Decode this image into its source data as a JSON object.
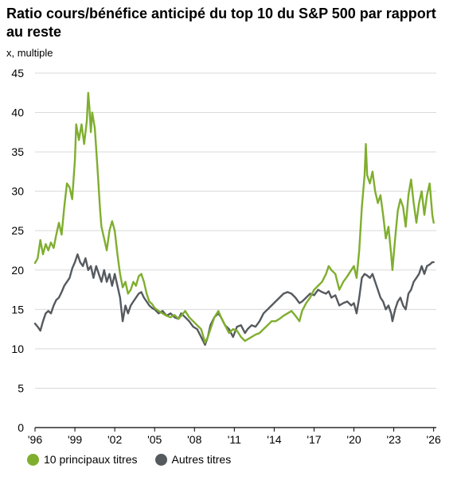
{
  "header": {
    "title": "Ratio cours/bénéfice anticipé du top 10 du S&P 500 par rapport au reste",
    "subtitle": "x, multiple"
  },
  "colors": {
    "top10": "#7fae2f",
    "others": "#555a5f",
    "grid": "#d9d9d9",
    "axis": "#000000"
  },
  "chart_data": {
    "type": "line",
    "title": "Ratio cours/bénéfice anticipé du top 10 du S&P 500 par rapport au reste",
    "ylabel": "x, multiple",
    "xlabel": "",
    "ylim": [
      0,
      45
    ],
    "xlim": [
      1996,
      2026.2
    ],
    "grid": true,
    "legend_position": "bottom-left",
    "y_ticks": [
      0,
      5,
      10,
      15,
      20,
      25,
      30,
      35,
      40,
      45
    ],
    "x_ticks": [
      {
        "value": 1996,
        "label": "'96"
      },
      {
        "value": 1999,
        "label": "'99"
      },
      {
        "value": 2002,
        "label": "'02"
      },
      {
        "value": 2005,
        "label": "'05"
      },
      {
        "value": 2008,
        "label": "'08"
      },
      {
        "value": 2011,
        "label": "'11"
      },
      {
        "value": 2014,
        "label": "'14"
      },
      {
        "value": 2017,
        "label": "'17"
      },
      {
        "value": 2020,
        "label": "'20"
      },
      {
        "value": 2023,
        "label": "'23"
      },
      {
        "value": 2026,
        "label": "'26"
      }
    ],
    "series": [
      {
        "name": "10 principaux titres",
        "points": [
          [
            1996.0,
            20.9
          ],
          [
            1996.2,
            21.5
          ],
          [
            1996.4,
            23.8
          ],
          [
            1996.6,
            22.0
          ],
          [
            1996.8,
            23.3
          ],
          [
            1997.0,
            22.5
          ],
          [
            1997.2,
            23.5
          ],
          [
            1997.4,
            22.8
          ],
          [
            1997.6,
            24.5
          ],
          [
            1997.8,
            26.0
          ],
          [
            1998.0,
            24.5
          ],
          [
            1998.2,
            28.0
          ],
          [
            1998.4,
            31.0
          ],
          [
            1998.6,
            30.5
          ],
          [
            1998.8,
            29.0
          ],
          [
            1999.0,
            34.0
          ],
          [
            1999.1,
            38.5
          ],
          [
            1999.3,
            36.5
          ],
          [
            1999.5,
            38.5
          ],
          [
            1999.7,
            36.0
          ],
          [
            1999.9,
            39.0
          ],
          [
            2000.0,
            42.5
          ],
          [
            2000.1,
            40.5
          ],
          [
            2000.2,
            37.5
          ],
          [
            2000.3,
            40.0
          ],
          [
            2000.5,
            38.0
          ],
          [
            2000.7,
            33.0
          ],
          [
            2000.9,
            27.5
          ],
          [
            2001.0,
            25.5
          ],
          [
            2001.2,
            24.0
          ],
          [
            2001.4,
            22.5
          ],
          [
            2001.6,
            25.0
          ],
          [
            2001.8,
            26.2
          ],
          [
            2002.0,
            25.0
          ],
          [
            2002.2,
            22.0
          ],
          [
            2002.4,
            19.5
          ],
          [
            2002.6,
            17.8
          ],
          [
            2002.8,
            18.5
          ],
          [
            2003.0,
            17.0
          ],
          [
            2003.2,
            17.5
          ],
          [
            2003.4,
            18.5
          ],
          [
            2003.6,
            18.0
          ],
          [
            2003.8,
            19.2
          ],
          [
            2004.0,
            19.5
          ],
          [
            2004.2,
            18.5
          ],
          [
            2004.4,
            17.0
          ],
          [
            2004.6,
            16.0
          ],
          [
            2004.8,
            15.7
          ],
          [
            2005.0,
            15.2
          ],
          [
            2005.3,
            14.8
          ],
          [
            2005.6,
            14.5
          ],
          [
            2005.9,
            14.2
          ],
          [
            2006.2,
            14.0
          ],
          [
            2006.5,
            14.3
          ],
          [
            2006.8,
            13.8
          ],
          [
            2007.0,
            14.2
          ],
          [
            2007.3,
            14.8
          ],
          [
            2007.6,
            14.0
          ],
          [
            2007.9,
            13.5
          ],
          [
            2008.2,
            13.0
          ],
          [
            2008.5,
            12.5
          ],
          [
            2008.8,
            10.8
          ],
          [
            2009.0,
            11.5
          ],
          [
            2009.2,
            12.5
          ],
          [
            2009.5,
            14.0
          ],
          [
            2009.8,
            14.8
          ],
          [
            2010.0,
            14.0
          ],
          [
            2010.3,
            13.0
          ],
          [
            2010.6,
            12.0
          ],
          [
            2010.9,
            12.5
          ],
          [
            2011.2,
            12.3
          ],
          [
            2011.5,
            11.5
          ],
          [
            2011.8,
            11.0
          ],
          [
            2012.0,
            11.2
          ],
          [
            2012.3,
            11.5
          ],
          [
            2012.6,
            11.8
          ],
          [
            2012.9,
            12.0
          ],
          [
            2013.2,
            12.5
          ],
          [
            2013.5,
            13.0
          ],
          [
            2013.8,
            13.5
          ],
          [
            2014.1,
            13.5
          ],
          [
            2014.4,
            13.8
          ],
          [
            2014.7,
            14.2
          ],
          [
            2015.0,
            14.5
          ],
          [
            2015.3,
            14.8
          ],
          [
            2015.6,
            14.2
          ],
          [
            2015.9,
            13.5
          ],
          [
            2016.1,
            14.8
          ],
          [
            2016.4,
            15.8
          ],
          [
            2016.7,
            16.5
          ],
          [
            2017.0,
            17.5
          ],
          [
            2017.3,
            18.0
          ],
          [
            2017.6,
            18.5
          ],
          [
            2017.9,
            19.5
          ],
          [
            2018.1,
            20.5
          ],
          [
            2018.3,
            20.0
          ],
          [
            2018.6,
            19.5
          ],
          [
            2018.9,
            17.5
          ],
          [
            2019.2,
            18.5
          ],
          [
            2019.5,
            19.2
          ],
          [
            2019.8,
            20.0
          ],
          [
            2020.0,
            20.5
          ],
          [
            2020.2,
            19.0
          ],
          [
            2020.4,
            22.5
          ],
          [
            2020.6,
            28.0
          ],
          [
            2020.8,
            32.0
          ],
          [
            2020.9,
            36.0
          ],
          [
            2021.0,
            32.0
          ],
          [
            2021.2,
            31.0
          ],
          [
            2021.4,
            32.5
          ],
          [
            2021.6,
            30.0
          ],
          [
            2021.8,
            28.5
          ],
          [
            2022.0,
            29.5
          ],
          [
            2022.2,
            27.0
          ],
          [
            2022.4,
            24.0
          ],
          [
            2022.6,
            25.5
          ],
          [
            2022.8,
            22.0
          ],
          [
            2022.9,
            20.0
          ],
          [
            2023.1,
            24.0
          ],
          [
            2023.3,
            27.5
          ],
          [
            2023.5,
            29.0
          ],
          [
            2023.7,
            28.0
          ],
          [
            2023.9,
            25.5
          ],
          [
            2024.1,
            29.5
          ],
          [
            2024.3,
            31.5
          ],
          [
            2024.5,
            28.5
          ],
          [
            2024.7,
            26.0
          ],
          [
            2024.9,
            28.5
          ],
          [
            2025.1,
            30.0
          ],
          [
            2025.3,
            27.0
          ],
          [
            2025.5,
            29.5
          ],
          [
            2025.7,
            31.0
          ],
          [
            2025.9,
            27.0
          ],
          [
            2026.0,
            26.0
          ]
        ]
      },
      {
        "name": "Autres titres",
        "points": [
          [
            1996.0,
            13.2
          ],
          [
            1996.2,
            12.8
          ],
          [
            1996.4,
            12.3
          ],
          [
            1996.6,
            13.5
          ],
          [
            1996.8,
            14.5
          ],
          [
            1997.0,
            14.8
          ],
          [
            1997.2,
            14.5
          ],
          [
            1997.4,
            15.5
          ],
          [
            1997.6,
            16.2
          ],
          [
            1997.8,
            16.5
          ],
          [
            1998.0,
            17.2
          ],
          [
            1998.2,
            18.0
          ],
          [
            1998.4,
            18.5
          ],
          [
            1998.6,
            19.0
          ],
          [
            1998.8,
            20.2
          ],
          [
            1999.0,
            21.0
          ],
          [
            1999.2,
            22.0
          ],
          [
            1999.4,
            21.0
          ],
          [
            1999.6,
            20.5
          ],
          [
            1999.8,
            21.5
          ],
          [
            2000.0,
            20.0
          ],
          [
            2000.2,
            20.5
          ],
          [
            2000.4,
            19.0
          ],
          [
            2000.6,
            20.5
          ],
          [
            2000.8,
            19.5
          ],
          [
            2001.0,
            18.5
          ],
          [
            2001.2,
            20.0
          ],
          [
            2001.4,
            18.5
          ],
          [
            2001.6,
            19.5
          ],
          [
            2001.8,
            18.0
          ],
          [
            2002.0,
            19.5
          ],
          [
            2002.2,
            18.0
          ],
          [
            2002.4,
            16.5
          ],
          [
            2002.6,
            13.5
          ],
          [
            2002.8,
            15.5
          ],
          [
            2003.0,
            14.5
          ],
          [
            2003.2,
            15.5
          ],
          [
            2003.4,
            16.0
          ],
          [
            2003.6,
            16.5
          ],
          [
            2003.8,
            17.0
          ],
          [
            2004.0,
            17.2
          ],
          [
            2004.2,
            16.5
          ],
          [
            2004.4,
            16.0
          ],
          [
            2004.6,
            15.5
          ],
          [
            2004.8,
            15.2
          ],
          [
            2005.0,
            15.0
          ],
          [
            2005.3,
            14.5
          ],
          [
            2005.6,
            14.8
          ],
          [
            2005.9,
            14.2
          ],
          [
            2006.2,
            14.5
          ],
          [
            2006.5,
            14.0
          ],
          [
            2006.8,
            13.8
          ],
          [
            2007.0,
            14.5
          ],
          [
            2007.3,
            14.0
          ],
          [
            2007.6,
            13.5
          ],
          [
            2007.9,
            12.8
          ],
          [
            2008.2,
            12.5
          ],
          [
            2008.5,
            11.5
          ],
          [
            2008.8,
            10.5
          ],
          [
            2009.0,
            11.5
          ],
          [
            2009.2,
            13.0
          ],
          [
            2009.5,
            14.0
          ],
          [
            2009.8,
            14.5
          ],
          [
            2010.0,
            14.0
          ],
          [
            2010.3,
            13.0
          ],
          [
            2010.6,
            12.5
          ],
          [
            2010.9,
            11.5
          ],
          [
            2011.2,
            12.8
          ],
          [
            2011.5,
            13.0
          ],
          [
            2011.8,
            12.0
          ],
          [
            2012.0,
            12.5
          ],
          [
            2012.3,
            13.0
          ],
          [
            2012.6,
            12.8
          ],
          [
            2012.9,
            13.5
          ],
          [
            2013.2,
            14.5
          ],
          [
            2013.5,
            15.0
          ],
          [
            2013.8,
            15.5
          ],
          [
            2014.1,
            16.0
          ],
          [
            2014.4,
            16.5
          ],
          [
            2014.7,
            17.0
          ],
          [
            2015.0,
            17.2
          ],
          [
            2015.3,
            17.0
          ],
          [
            2015.6,
            16.5
          ],
          [
            2015.9,
            15.8
          ],
          [
            2016.1,
            16.0
          ],
          [
            2016.4,
            16.5
          ],
          [
            2016.7,
            17.0
          ],
          [
            2017.0,
            16.8
          ],
          [
            2017.3,
            17.5
          ],
          [
            2017.6,
            17.2
          ],
          [
            2017.9,
            17.0
          ],
          [
            2018.1,
            17.3
          ],
          [
            2018.3,
            16.5
          ],
          [
            2018.6,
            16.8
          ],
          [
            2018.9,
            15.5
          ],
          [
            2019.2,
            15.8
          ],
          [
            2019.5,
            16.0
          ],
          [
            2019.8,
            15.5
          ],
          [
            2020.0,
            15.8
          ],
          [
            2020.2,
            14.5
          ],
          [
            2020.4,
            16.5
          ],
          [
            2020.6,
            19.0
          ],
          [
            2020.8,
            19.5
          ],
          [
            2021.0,
            19.3
          ],
          [
            2021.2,
            19.0
          ],
          [
            2021.4,
            19.5
          ],
          [
            2021.6,
            18.5
          ],
          [
            2021.8,
            17.5
          ],
          [
            2022.0,
            16.5
          ],
          [
            2022.2,
            16.0
          ],
          [
            2022.4,
            15.0
          ],
          [
            2022.6,
            15.5
          ],
          [
            2022.8,
            14.5
          ],
          [
            2022.9,
            13.5
          ],
          [
            2023.1,
            15.0
          ],
          [
            2023.3,
            16.0
          ],
          [
            2023.5,
            16.5
          ],
          [
            2023.7,
            15.5
          ],
          [
            2023.9,
            15.0
          ],
          [
            2024.1,
            17.0
          ],
          [
            2024.3,
            17.5
          ],
          [
            2024.5,
            18.5
          ],
          [
            2024.7,
            19.0
          ],
          [
            2024.9,
            19.5
          ],
          [
            2025.1,
            20.5
          ],
          [
            2025.3,
            19.5
          ],
          [
            2025.5,
            20.5
          ],
          [
            2025.7,
            20.7
          ],
          [
            2025.9,
            21.0
          ],
          [
            2026.0,
            21.0
          ]
        ]
      }
    ]
  }
}
